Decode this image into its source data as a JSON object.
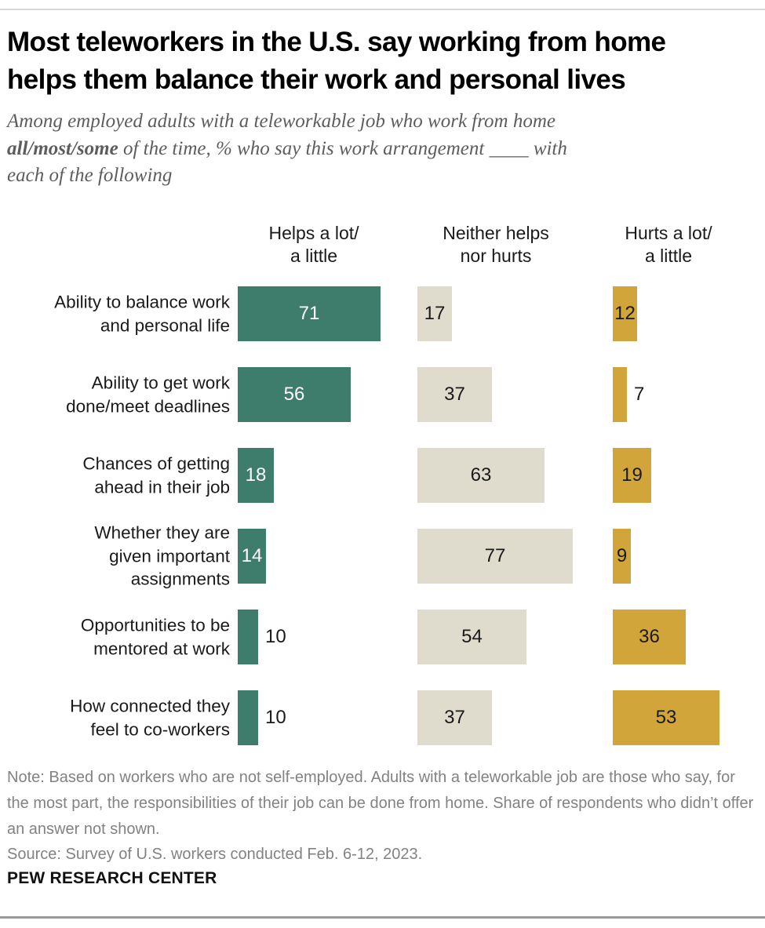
{
  "header": {
    "title": "Most teleworkers in the U.S. say working from home\nhelps them balance their work and personal lives",
    "subtitle_pre": "Among employed adults with a teleworkable job who work from home\n",
    "subtitle_bold": "all/most/some",
    "subtitle_post": " of the time, % who say this work arrangement ____ with\neach of the following"
  },
  "chart_data": {
    "type": "bar",
    "orientation": "horizontal",
    "unit": "%",
    "title": "Most teleworkers in the U.S. say working from home helps them balance their work and personal lives",
    "categories": [
      "Ability to balance work\nand personal life",
      "Ability to get work\ndone/meet deadlines",
      "Chances of getting\nahead in their job",
      "Whether they are\ngiven important\nassignments",
      "Opportunities to be\nmentored at work",
      "How connected they\nfeel to co-workers"
    ],
    "series": [
      {
        "name": "Helps a lot/\na little",
        "color": "#3e7c6c",
        "value_color_inside": "#ffffff",
        "values": [
          71,
          56,
          18,
          14,
          10,
          10
        ],
        "label_pos": [
          "in",
          "in",
          "in",
          "in",
          "out",
          "out"
        ]
      },
      {
        "name": "Neither helps\nnor hurts",
        "color": "#dfdcce",
        "value_color_inside": "#1a1a1a",
        "values": [
          17,
          37,
          63,
          77,
          54,
          37
        ],
        "label_pos": [
          "in",
          "in",
          "in",
          "in",
          "in",
          "in"
        ]
      },
      {
        "name": "Hurts a lot/\na little",
        "color": "#d1a53a",
        "value_color_inside": "#1a1a1a",
        "values": [
          12,
          7,
          19,
          9,
          36,
          53
        ],
        "label_pos": [
          "in",
          "out",
          "in",
          "in",
          "in",
          "in"
        ]
      }
    ],
    "xlim": [
      0,
      100
    ],
    "legend_position": "column-headers",
    "grid": false
  },
  "footer": {
    "note": "Note: Based on workers who are not self-employed. Adults with a teleworkable job are those who say, for the most part, the responsibilities of their job can be done from home. Share of respondents who didn’t offer an answer not shown.",
    "source": "Source: Survey of U.S. workers conducted Feb. 6-12, 2023.",
    "brand": "PEW RESEARCH CENTER"
  }
}
